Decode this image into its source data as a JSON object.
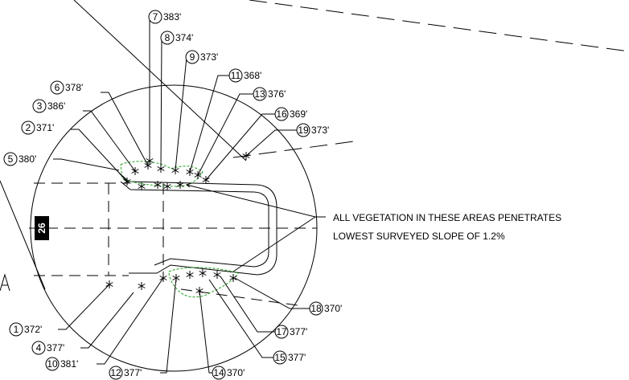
{
  "runway_number": "26",
  "note": {
    "line1": "ALL VEGETATION IN THESE AREAS PENETRATES",
    "line2": "LOWEST SURVEYED SLOPE OF 1.2%"
  },
  "callouts": [
    {
      "id": "7",
      "elev": "383'"
    },
    {
      "id": "8",
      "elev": "374'"
    },
    {
      "id": "9",
      "elev": "373'"
    },
    {
      "id": "11",
      "elev": "368'"
    },
    {
      "id": "13",
      "elev": "376'"
    },
    {
      "id": "16",
      "elev": "369'"
    },
    {
      "id": "19",
      "elev": "373'"
    },
    {
      "id": "6",
      "elev": "378'"
    },
    {
      "id": "3",
      "elev": "386'"
    },
    {
      "id": "2",
      "elev": "371'"
    },
    {
      "id": "5",
      "elev": "380'"
    },
    {
      "id": "1",
      "elev": "372'"
    },
    {
      "id": "4",
      "elev": "377'"
    },
    {
      "id": "10",
      "elev": "381'"
    },
    {
      "id": "12",
      "elev": "377'"
    },
    {
      "id": "14",
      "elev": "370'"
    },
    {
      "id": "15",
      "elev": "377'"
    },
    {
      "id": "17",
      "elev": "377'"
    },
    {
      "id": "18",
      "elev": "370'"
    }
  ],
  "colors": {
    "linework": "#000000",
    "vegetation": "#1ca31c",
    "background": "#ffffff"
  }
}
